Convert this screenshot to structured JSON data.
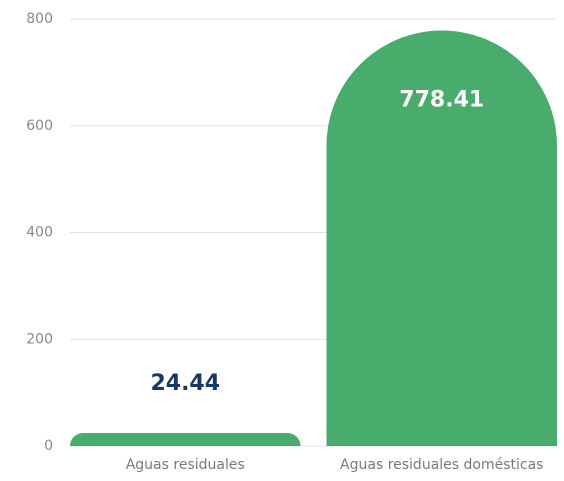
{
  "chart_data": {
    "type": "bar",
    "categories": [
      "Aguas residuales",
      "Aguas residuales domésticas"
    ],
    "values": [
      24.44,
      778.41
    ],
    "color": "#48ad6c",
    "ylim": [
      0,
      800
    ],
    "yticks": [
      0,
      200,
      400,
      600,
      800
    ],
    "grid": true
  }
}
